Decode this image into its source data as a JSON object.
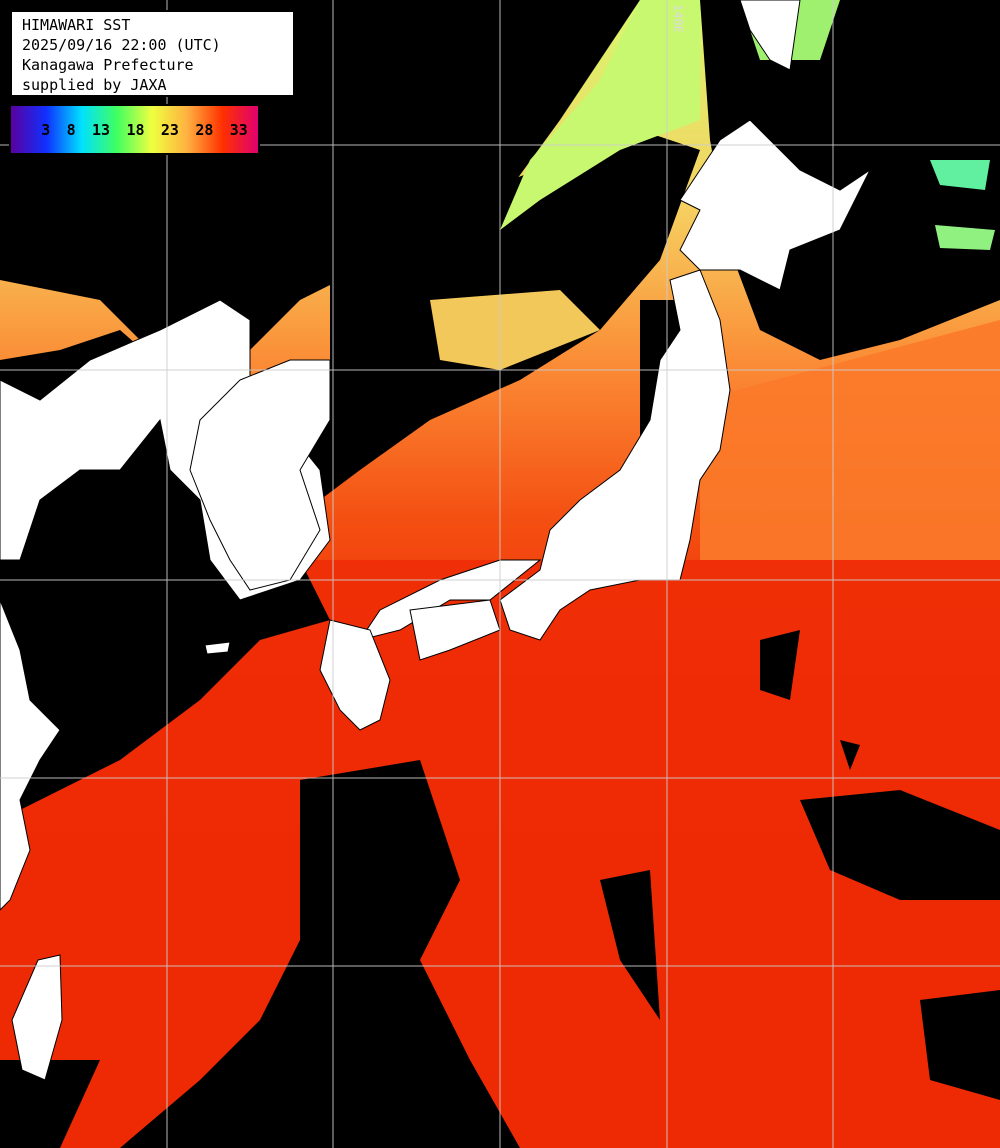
{
  "title_box": {
    "lines": [
      "HIMAWARI SST",
      "2025/09/16 22:00 (UTC)",
      "Kanagawa Prefecture",
      "supplied by JAXA"
    ]
  },
  "colorbar": {
    "ticks": [
      "3",
      "8",
      "13",
      "18",
      "23",
      "28",
      "33"
    ],
    "gradient_colors": [
      "#5a00a0",
      "#1030ff",
      "#00e0ff",
      "#40ff60",
      "#f0ff40",
      "#ffb040",
      "#ff3000",
      "#e00070"
    ]
  },
  "grid_labels": {
    "top_lon": "140E"
  },
  "colors": {
    "land": "#ffffff",
    "cloud_nodata": "#000000",
    "grid": "#cccccc",
    "sea_warm": "#ee2a05",
    "sea_mid": "#fb7a2a",
    "sea_cool": "#f3c85a",
    "sea_cold": "#c8f870"
  }
}
